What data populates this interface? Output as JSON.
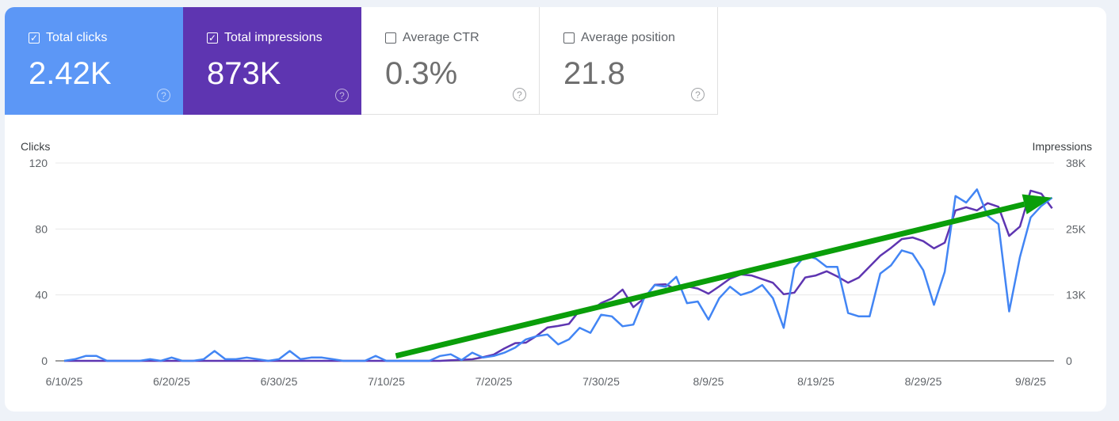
{
  "metrics": [
    {
      "label": "Total clicks",
      "value": "2.42K",
      "checked": true,
      "color": "#5c97f6"
    },
    {
      "label": "Total impressions",
      "value": "873K",
      "checked": true,
      "color": "#5e35b1"
    },
    {
      "label": "Average CTR",
      "value": "0.3%",
      "checked": false
    },
    {
      "label": "Average position",
      "value": "21.8",
      "checked": false
    }
  ],
  "chart_data": {
    "type": "line",
    "left_axis_label": "Clicks",
    "right_axis_label": "Impressions",
    "left_ylim": [
      0,
      120
    ],
    "left_ticks": [
      "0",
      "40",
      "80",
      "120"
    ],
    "right_ylim": [
      0,
      38000
    ],
    "right_ticks": [
      "0",
      "13K",
      "25K",
      "38K"
    ],
    "x_ticks": [
      "6/10/25",
      "6/20/25",
      "6/30/25",
      "7/10/25",
      "7/20/25",
      "7/30/25",
      "8/9/25",
      "8/19/25",
      "8/29/25",
      "9/8/25"
    ],
    "grid": true,
    "x": [
      "6/10",
      "6/11",
      "6/12",
      "6/13",
      "6/14",
      "6/15",
      "6/16",
      "6/17",
      "6/18",
      "6/19",
      "6/20",
      "6/21",
      "6/22",
      "6/23",
      "6/24",
      "6/25",
      "6/26",
      "6/27",
      "6/28",
      "6/29",
      "6/30",
      "7/1",
      "7/2",
      "7/3",
      "7/4",
      "7/5",
      "7/6",
      "7/7",
      "7/8",
      "7/9",
      "7/10",
      "7/11",
      "7/12",
      "7/13",
      "7/14",
      "7/15",
      "7/16",
      "7/17",
      "7/18",
      "7/19",
      "7/20",
      "7/21",
      "7/22",
      "7/23",
      "7/24",
      "7/25",
      "7/26",
      "7/27",
      "7/28",
      "7/29",
      "7/30",
      "7/31",
      "8/1",
      "8/2",
      "8/3",
      "8/4",
      "8/5",
      "8/6",
      "8/7",
      "8/8",
      "8/9",
      "8/10",
      "8/11",
      "8/12",
      "8/13",
      "8/14",
      "8/15",
      "8/16",
      "8/17",
      "8/18",
      "8/19",
      "8/20",
      "8/21",
      "8/22",
      "8/23",
      "8/24",
      "8/25",
      "8/26",
      "8/27",
      "8/28",
      "8/29",
      "8/30",
      "8/31",
      "9/1",
      "9/2",
      "9/3",
      "9/4",
      "9/5",
      "9/6",
      "9/7",
      "9/8",
      "9/9",
      "9/10"
    ],
    "series": [
      {
        "name": "Clicks",
        "axis": "left",
        "color": "#4285f4",
        "values": [
          0,
          1,
          3,
          3,
          0,
          0,
          0,
          0,
          1,
          0,
          2,
          0,
          0,
          1,
          6,
          1,
          1,
          2,
          1,
          0,
          1,
          6,
          1,
          2,
          2,
          1,
          0,
          0,
          0,
          3,
          0,
          0,
          0,
          0,
          0,
          3,
          4,
          0.5,
          5,
          2,
          3,
          5,
          8,
          13,
          15,
          16,
          10,
          13,
          20,
          17,
          28,
          27,
          21,
          22,
          38,
          46,
          45,
          51,
          35,
          36,
          25,
          38,
          45,
          40,
          42,
          46,
          38,
          20,
          56,
          64,
          62,
          57,
          57,
          29,
          27,
          27,
          53,
          58,
          67,
          65,
          55,
          34,
          54,
          100,
          96,
          104,
          88,
          83,
          30,
          63,
          87,
          94,
          99
        ]
      },
      {
        "name": "Impressions",
        "axis": "right",
        "color": "#5e35b1",
        "values": [
          0,
          0,
          0,
          0,
          0,
          0,
          0,
          0,
          0,
          0,
          0,
          0,
          0,
          0,
          0,
          0,
          0,
          0,
          0,
          0,
          0,
          0,
          0,
          0,
          0,
          0,
          0,
          0,
          0,
          0,
          0,
          0,
          0,
          0,
          0,
          0,
          100,
          200,
          300,
          700,
          1200,
          2400,
          3400,
          3500,
          4800,
          6400,
          6700,
          7100,
          9700,
          9600,
          11100,
          12000,
          13700,
          10300,
          12000,
          14600,
          14700,
          13700,
          14300,
          13900,
          12900,
          14300,
          15800,
          16600,
          16400,
          15700,
          15000,
          12800,
          13100,
          16000,
          16400,
          17200,
          16200,
          15000,
          16000,
          18100,
          20200,
          21700,
          23400,
          23700,
          23000,
          21600,
          22700,
          28900,
          29500,
          28900,
          30300,
          29600,
          24000,
          25800,
          32700,
          32100,
          29300
        ]
      }
    ],
    "annotations": [
      {
        "type": "arrow",
        "from": [
          "7/10",
          3
        ],
        "to": [
          "9/10",
          99
        ],
        "color": "#0a9e0a"
      }
    ]
  }
}
